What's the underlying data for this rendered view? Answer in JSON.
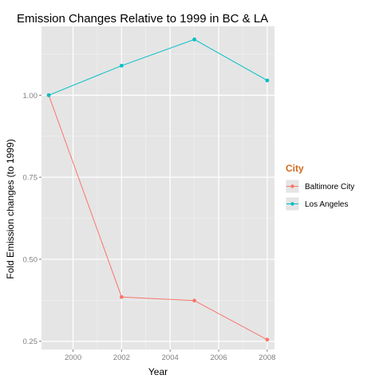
{
  "chart_data": {
    "type": "line",
    "title": "Emission Changes Relative to 1999 in BC & LA",
    "xlabel": "Year",
    "ylabel": "Fold Emission changes (to 1999)",
    "x": [
      1999,
      2002,
      2005,
      2008
    ],
    "xlim": [
      1998.7,
      2008.3
    ],
    "ylim": [
      0.225,
      1.21
    ],
    "xticks": [
      2000,
      2002,
      2004,
      2006,
      2008
    ],
    "xtick_labels": [
      "2000",
      "2002",
      "2004",
      "2006",
      "2008"
    ],
    "yticks": [
      0.25,
      0.5,
      0.75,
      1.0
    ],
    "ytick_labels": [
      "0.25",
      "0.50",
      "0.75",
      "1.00"
    ],
    "grid": true,
    "legend": {
      "title": "City",
      "position": "right"
    },
    "series": [
      {
        "name": "Baltimore City",
        "values": [
          1.0,
          0.385,
          0.374,
          0.255
        ],
        "color": "#f8766d"
      },
      {
        "name": "Los Angeles",
        "values": [
          1.0,
          1.09,
          1.17,
          1.045
        ],
        "color": "#00bfc4"
      }
    ]
  },
  "colors": {
    "panel_background": "#e5e5e5",
    "grid_major": "#ffffff",
    "grid_minor": "#f2f2f2"
  }
}
